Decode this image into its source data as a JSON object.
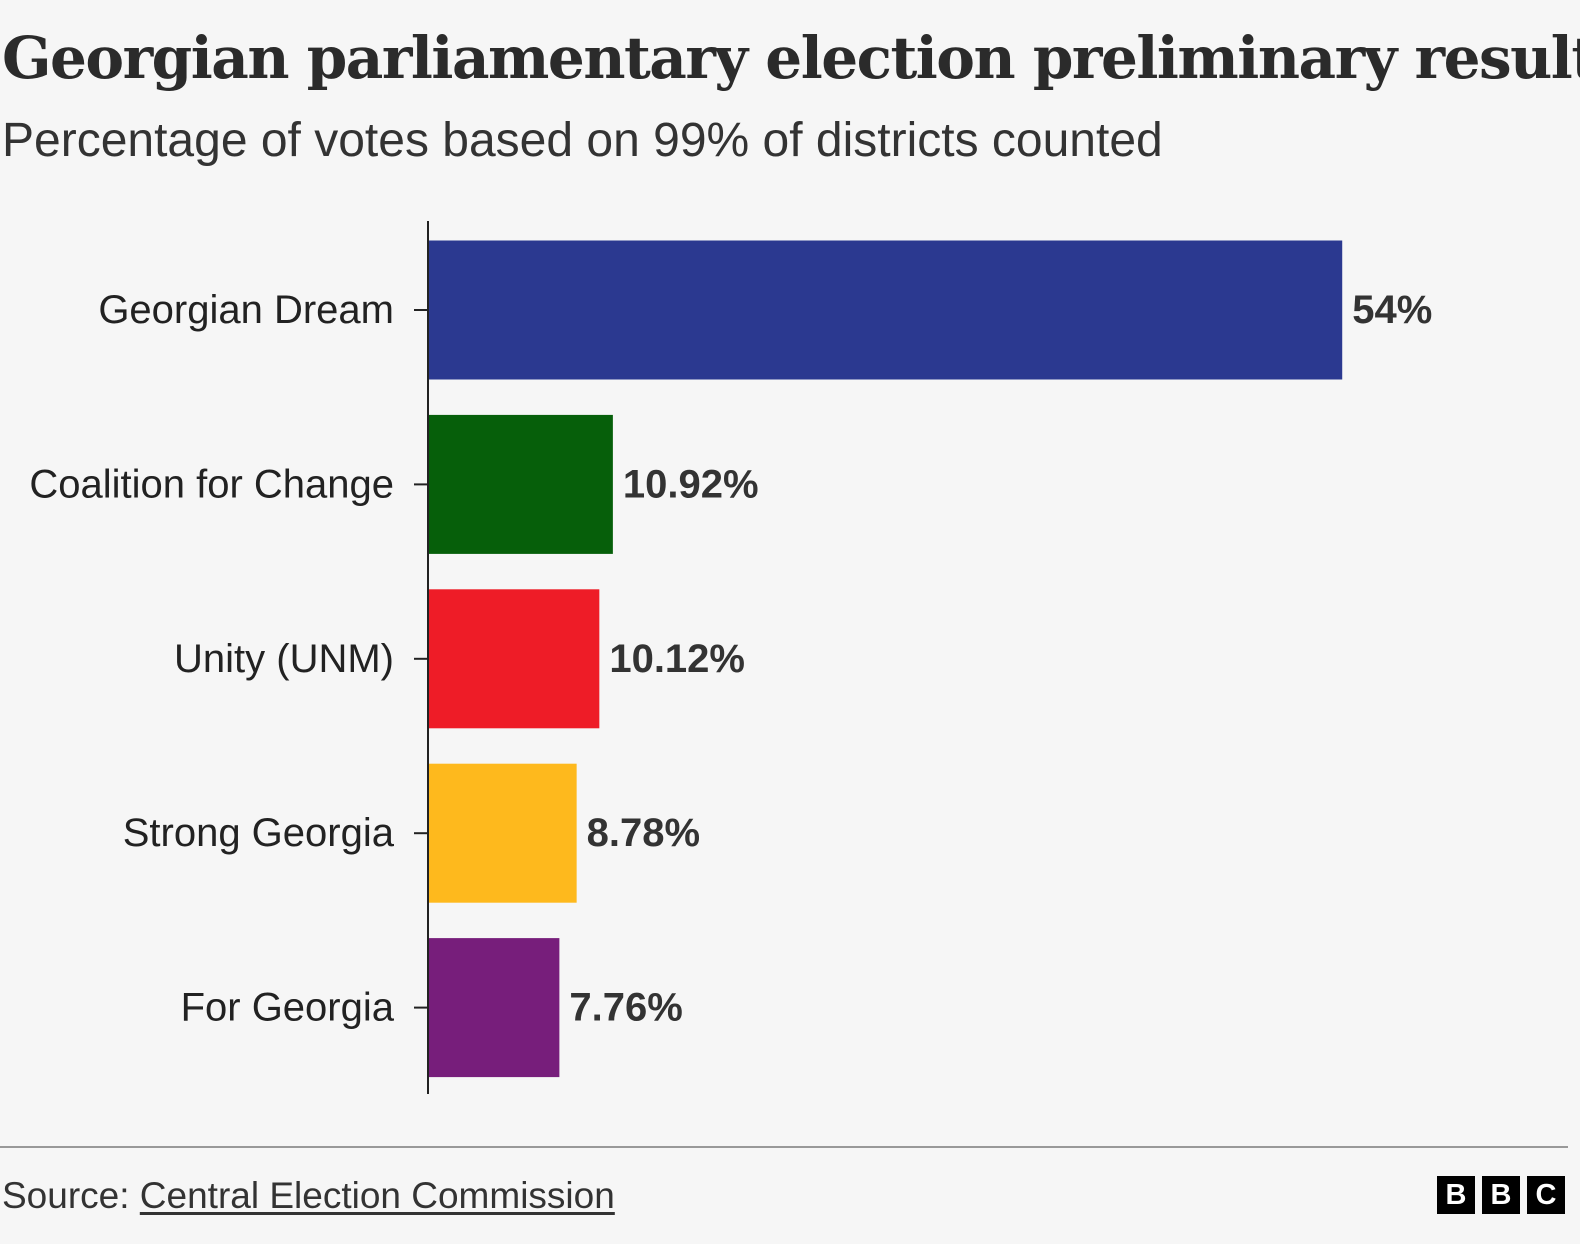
{
  "header": {
    "title": "Georgian parliamentary election preliminary results",
    "subtitle": "Percentage of votes based on 99% of districts counted"
  },
  "chart_data": {
    "type": "bar",
    "orientation": "horizontal",
    "categories": [
      "Georgian Dream",
      "Coalition for Change",
      "Unity (UNM)",
      "Strong Georgia",
      "For Georgia"
    ],
    "values": [
      54,
      10.92,
      10.12,
      8.78,
      7.76
    ],
    "value_labels": [
      "54%",
      "10.92%",
      "10.12%",
      "8.78%",
      "7.76%"
    ],
    "colors": [
      "#2b3990",
      "#065f0a",
      "#ee1c27",
      "#feb91d",
      "#771e7b"
    ],
    "xlim": [
      0,
      60
    ],
    "grid": false,
    "legend": "none"
  },
  "footer": {
    "source_prefix": "Source: ",
    "source_name": "Central Election Commission",
    "logo_letters": [
      "B",
      "B",
      "C"
    ]
  }
}
